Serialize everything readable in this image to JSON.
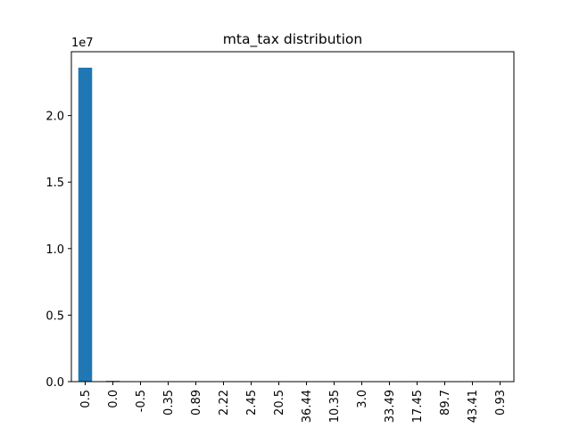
{
  "chart_data": {
    "type": "bar",
    "title": "mta_tax distribution",
    "xlabel": "",
    "ylabel": "",
    "y_offset_label": "1e7",
    "y_scale_factor": 10000000,
    "ylim": [
      0,
      24800000
    ],
    "yticks": [
      0,
      5000000,
      10000000,
      15000000,
      20000000
    ],
    "ytick_labels": [
      "0.0",
      "0.5",
      "1.0",
      "1.5",
      "2.0"
    ],
    "categories": [
      "0.5",
      "0.0",
      "-0.5",
      "0.35",
      "0.89",
      "2.22",
      "2.45",
      "20.5",
      "36.44",
      "10.35",
      "3.0",
      "33.49",
      "17.45",
      "89.7",
      "43.41",
      "0.93"
    ],
    "values": [
      23600000,
      60000,
      2000,
      10,
      5,
      3,
      2,
      2,
      1,
      1,
      1,
      1,
      1,
      1,
      1,
      1
    ],
    "bar_color": "#1f77b4",
    "grid": false,
    "legend": "none"
  }
}
